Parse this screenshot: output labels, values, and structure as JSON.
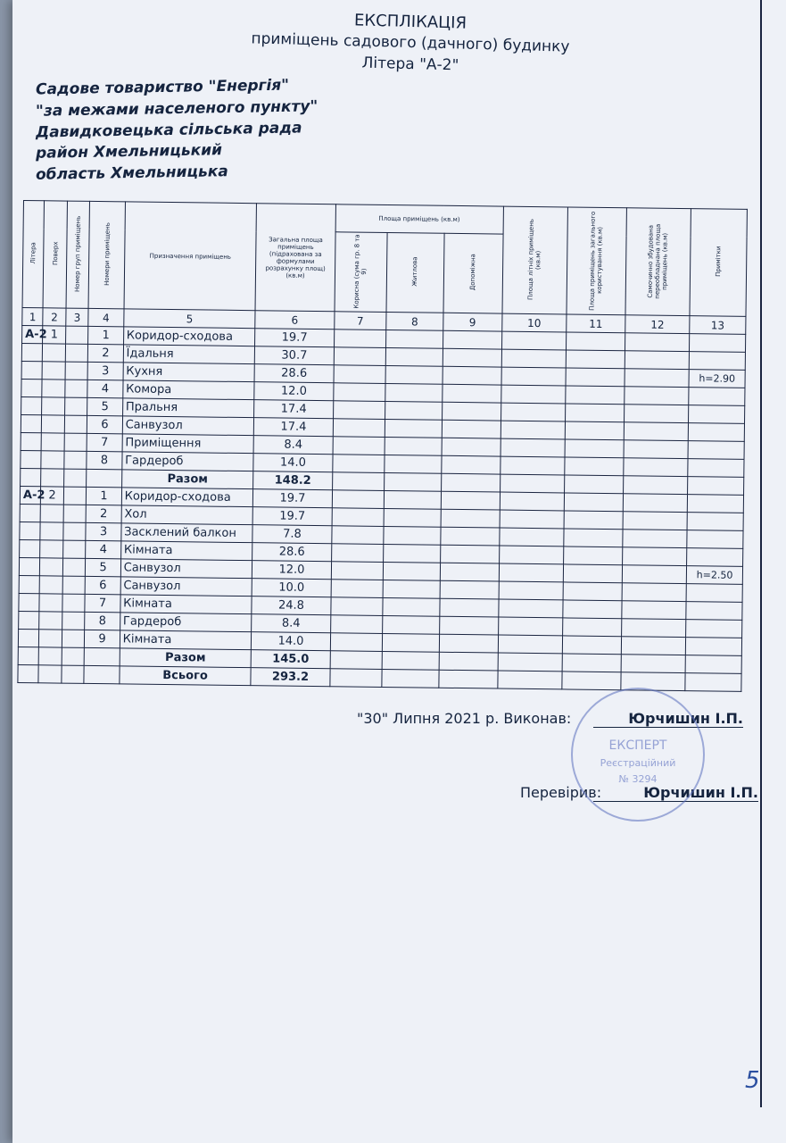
{
  "header": {
    "title": "ЕКСПЛІКАЦІЯ",
    "subtitle": "приміщень садового (дачного) будинку",
    "litera": "Літера \"А-2\""
  },
  "address": [
    "Садове товариство \"Енергія\"",
    "\"за межами населеного пункту\"",
    "Давидковецька сільська рада",
    "район Хмельницький",
    "область Хмельницька"
  ],
  "table": {
    "headers": {
      "litera": "Літера",
      "floor": "Поверх",
      "group": "Номер груп приміщень",
      "room_no": "Номери приміщень",
      "purpose": "Призначення приміщень",
      "total": "Загальна площа приміщень (підрахована за формулами розрахунку площ) (кв.м)",
      "area_group": "Площа приміщень (кв.м)",
      "useful": "Корисна (сума гр. 8 та 9)",
      "living": "Житлова",
      "auxiliary": "Допоміжна",
      "summer": "Площа літніх приміщень (кв.м)",
      "common": "Площа приміщень загального користування (кв.м)",
      "unauthorized": "Самочинно збудована переобладнана площа приміщень (кв.м)",
      "notes": "Примітки"
    },
    "col_numbers": [
      "1",
      "2",
      "3",
      "4",
      "5",
      "6",
      "7",
      "8",
      "9",
      "10",
      "11",
      "12",
      "13"
    ],
    "rows": [
      {
        "litera": "А-2",
        "floor": "1",
        "no": "1",
        "name": "Коридор-сходова",
        "area": "19.7",
        "note": ""
      },
      {
        "litera": "",
        "floor": "",
        "no": "2",
        "name": "Їдальня",
        "area": "30.7",
        "note": ""
      },
      {
        "litera": "",
        "floor": "",
        "no": "3",
        "name": "Кухня",
        "area": "28.6",
        "note": "h=2.90"
      },
      {
        "litera": "",
        "floor": "",
        "no": "4",
        "name": "Комора",
        "area": "12.0",
        "note": ""
      },
      {
        "litera": "",
        "floor": "",
        "no": "5",
        "name": "Пральня",
        "area": "17.4",
        "note": ""
      },
      {
        "litera": "",
        "floor": "",
        "no": "6",
        "name": "Санвузол",
        "area": "17.4",
        "note": ""
      },
      {
        "litera": "",
        "floor": "",
        "no": "7",
        "name": "Приміщення",
        "area": "8.4",
        "note": ""
      },
      {
        "litera": "",
        "floor": "",
        "no": "8",
        "name": "Гардероб",
        "area": "14.0",
        "note": ""
      },
      {
        "litera": "",
        "floor": "",
        "no": "",
        "name": "Разом",
        "area": "148.2",
        "note": "",
        "total": true
      },
      {
        "litera": "А-2",
        "floor": "2",
        "no": "1",
        "name": "Коридор-сходова",
        "area": "19.7",
        "note": ""
      },
      {
        "litera": "",
        "floor": "",
        "no": "2",
        "name": "Хол",
        "area": "19.7",
        "note": ""
      },
      {
        "litera": "",
        "floor": "",
        "no": "3",
        "name": "Засклений балкон",
        "area": "7.8",
        "note": ""
      },
      {
        "litera": "",
        "floor": "",
        "no": "4",
        "name": "Кімната",
        "area": "28.6",
        "note": ""
      },
      {
        "litera": "",
        "floor": "",
        "no": "5",
        "name": "Санвузол",
        "area": "12.0",
        "note": "h=2.50"
      },
      {
        "litera": "",
        "floor": "",
        "no": "6",
        "name": "Санвузол",
        "area": "10.0",
        "note": ""
      },
      {
        "litera": "",
        "floor": "",
        "no": "7",
        "name": "Кімната",
        "area": "24.8",
        "note": ""
      },
      {
        "litera": "",
        "floor": "",
        "no": "8",
        "name": "Гардероб",
        "area": "8.4",
        "note": ""
      },
      {
        "litera": "",
        "floor": "",
        "no": "9",
        "name": "Кімната",
        "area": "14.0",
        "note": ""
      },
      {
        "litera": "",
        "floor": "",
        "no": "",
        "name": "Разом",
        "area": "145.0",
        "note": "",
        "total": true
      },
      {
        "litera": "",
        "floor": "",
        "no": "",
        "name": "Всього",
        "area": "293.2",
        "note": "",
        "total": true
      }
    ]
  },
  "footer": {
    "date": "\"30\" Липня 2021 р. Виконав:",
    "executor": "Юрчишин І.П.",
    "checked_label": "Перевірив:",
    "checker": "Юрчишин І.П."
  },
  "stamp": {
    "text": "ЕКСПЕРТ",
    "reg": "Реєстраційний",
    "no": "№ 3294"
  },
  "page_number": "5"
}
